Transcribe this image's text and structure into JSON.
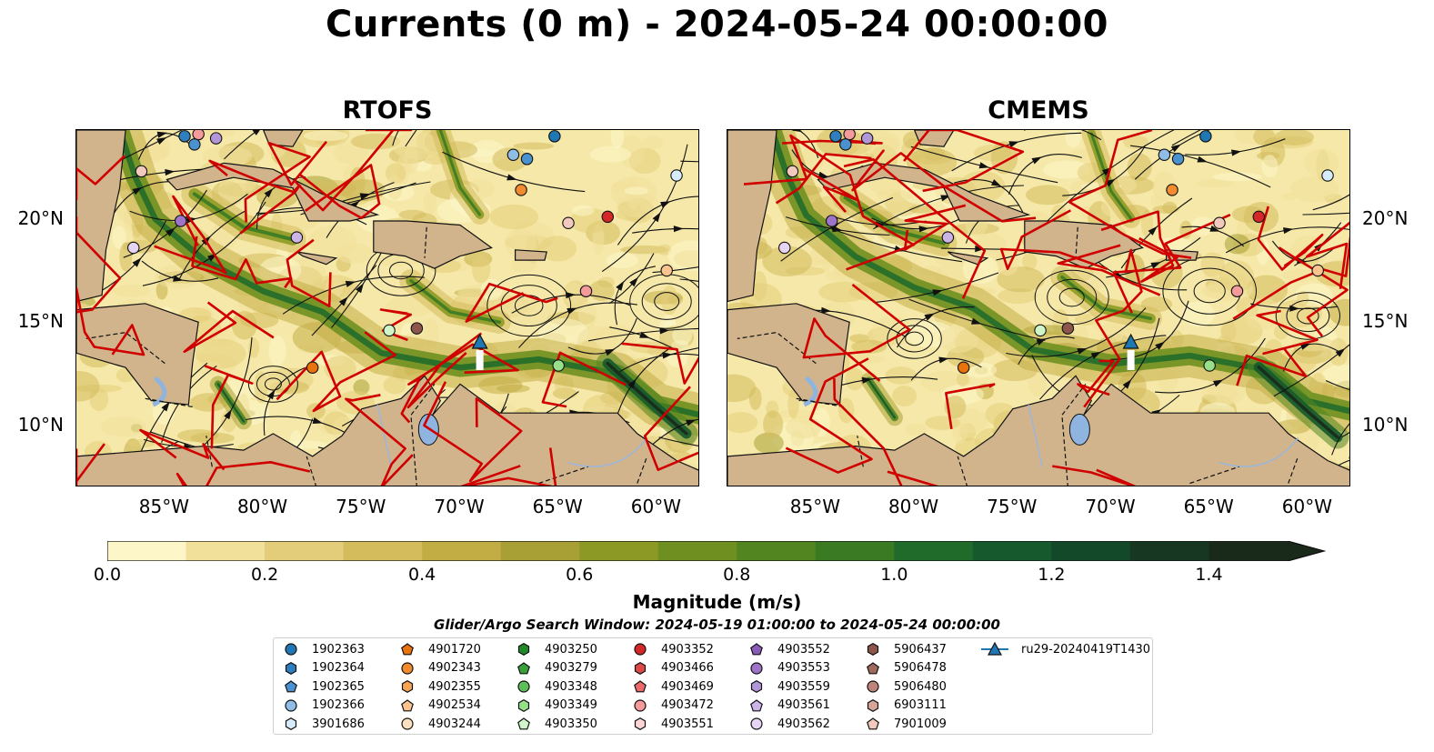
{
  "title": "Currents (0 m) - 2024-05-24 00:00:00",
  "chart_data": {
    "type": "heatmap",
    "variable": "Magnitude (m/s)",
    "panels": [
      {
        "name": "RTOFS"
      },
      {
        "name": "CMEMS"
      }
    ],
    "lon_range": [
      -89.5,
      -57.8
    ],
    "lat_range": [
      7,
      24.3
    ],
    "lat_ticks": [
      "20°N",
      "15°N",
      "10°N"
    ],
    "lat_values": [
      20,
      15,
      10
    ],
    "lon_ticks": [
      "85°W",
      "80°W",
      "75°W",
      "70°W",
      "65°W",
      "60°W"
    ],
    "lon_values": [
      -85,
      -80,
      -75,
      -70,
      -65,
      -60
    ],
    "colorbar": {
      "ticks": [
        "0.0",
        "0.2",
        "0.4",
        "0.6",
        "0.8",
        "1.0",
        "1.2",
        "1.4"
      ],
      "tick_values": [
        0,
        0.2,
        0.4,
        0.6,
        0.8,
        1.0,
        1.2,
        1.4
      ],
      "levels": [
        0,
        0.1,
        0.2,
        0.3,
        0.4,
        0.5,
        0.6,
        0.7,
        0.8,
        0.9,
        1.0,
        1.1,
        1.2,
        1.3,
        1.4,
        1.5
      ],
      "colors": [
        "#fcf6c8",
        "#f0e09a",
        "#e3cd7a",
        "#d4bc5c",
        "#c2ad45",
        "#a8a035",
        "#8c9a25",
        "#6f9020",
        "#528520",
        "#397a22",
        "#216b2a",
        "#15592c",
        "#134828",
        "#173722",
        "#1a2a1a"
      ],
      "extend": "max",
      "label": "Magnitude (m/s)"
    }
  },
  "search_window": "Glider/Argo Search Window: 2024-05-19 01:00:00 to 2024-05-24 00:00:00",
  "legend": [
    {
      "label": "1902363",
      "marker": "circle",
      "color": "#1f77b4"
    },
    {
      "label": "1902364",
      "marker": "hexagon",
      "color": "#2f7fbf"
    },
    {
      "label": "1902365",
      "marker": "pentagon",
      "color": "#4a92cf"
    },
    {
      "label": "1902366",
      "marker": "circle",
      "color": "#8fbde6"
    },
    {
      "label": "3901686",
      "marker": "hexagon",
      "color": "#d6ecfa"
    },
    {
      "label": "4901720",
      "marker": "pentagon",
      "color": "#e8720c"
    },
    {
      "label": "4902343",
      "marker": "circle",
      "color": "#f28a2e"
    },
    {
      "label": "4902355",
      "marker": "hexagon",
      "color": "#f7a553"
    },
    {
      "label": "4902534",
      "marker": "pentagon",
      "color": "#fbc48f"
    },
    {
      "label": "4903244",
      "marker": "circle",
      "color": "#fde0c0"
    },
    {
      "label": "4903250",
      "marker": "hexagon",
      "color": "#208a2a"
    },
    {
      "label": "4903279",
      "marker": "pentagon",
      "color": "#3aa13a"
    },
    {
      "label": "4903348",
      "marker": "circle",
      "color": "#5cbf5c"
    },
    {
      "label": "4903349",
      "marker": "hexagon",
      "color": "#98df8a"
    },
    {
      "label": "4903350",
      "marker": "pentagon",
      "color": "#d0f5c8"
    },
    {
      "label": "4903352",
      "marker": "circle",
      "color": "#d62728"
    },
    {
      "label": "4903466",
      "marker": "hexagon",
      "color": "#e04848"
    },
    {
      "label": "4903469",
      "marker": "pentagon",
      "color": "#ea6a6a"
    },
    {
      "label": "4903472",
      "marker": "circle",
      "color": "#f59a9a"
    },
    {
      "label": "4903551",
      "marker": "hexagon",
      "color": "#fcd4d4"
    },
    {
      "label": "4903552",
      "marker": "pentagon",
      "color": "#8a5cb8"
    },
    {
      "label": "4903553",
      "marker": "circle",
      "color": "#9e74c8"
    },
    {
      "label": "4903559",
      "marker": "hexagon",
      "color": "#b196d8"
    },
    {
      "label": "4903561",
      "marker": "pentagon",
      "color": "#cbb4e6"
    },
    {
      "label": "4903562",
      "marker": "circle",
      "color": "#e6d4f4"
    },
    {
      "label": "5906437",
      "marker": "hexagon",
      "color": "#8c564b"
    },
    {
      "label": "5906478",
      "marker": "pentagon",
      "color": "#a0695d"
    },
    {
      "label": "5906480",
      "marker": "circle",
      "color": "#c0837a"
    },
    {
      "label": "6903111",
      "marker": "hexagon",
      "color": "#d9a59a"
    },
    {
      "label": "7901009",
      "marker": "pentagon",
      "color": "#f2c9bc"
    },
    {
      "label": "ru29-20240419T1430",
      "marker": "triangle-line",
      "color": "#1f77b4"
    }
  ],
  "map_colors": {
    "land": "#d2b48c",
    "ocean_low": "#f5e8a8",
    "lake": "#8fb4e0",
    "glider": "#1f77b4",
    "contours": "#d00000"
  }
}
